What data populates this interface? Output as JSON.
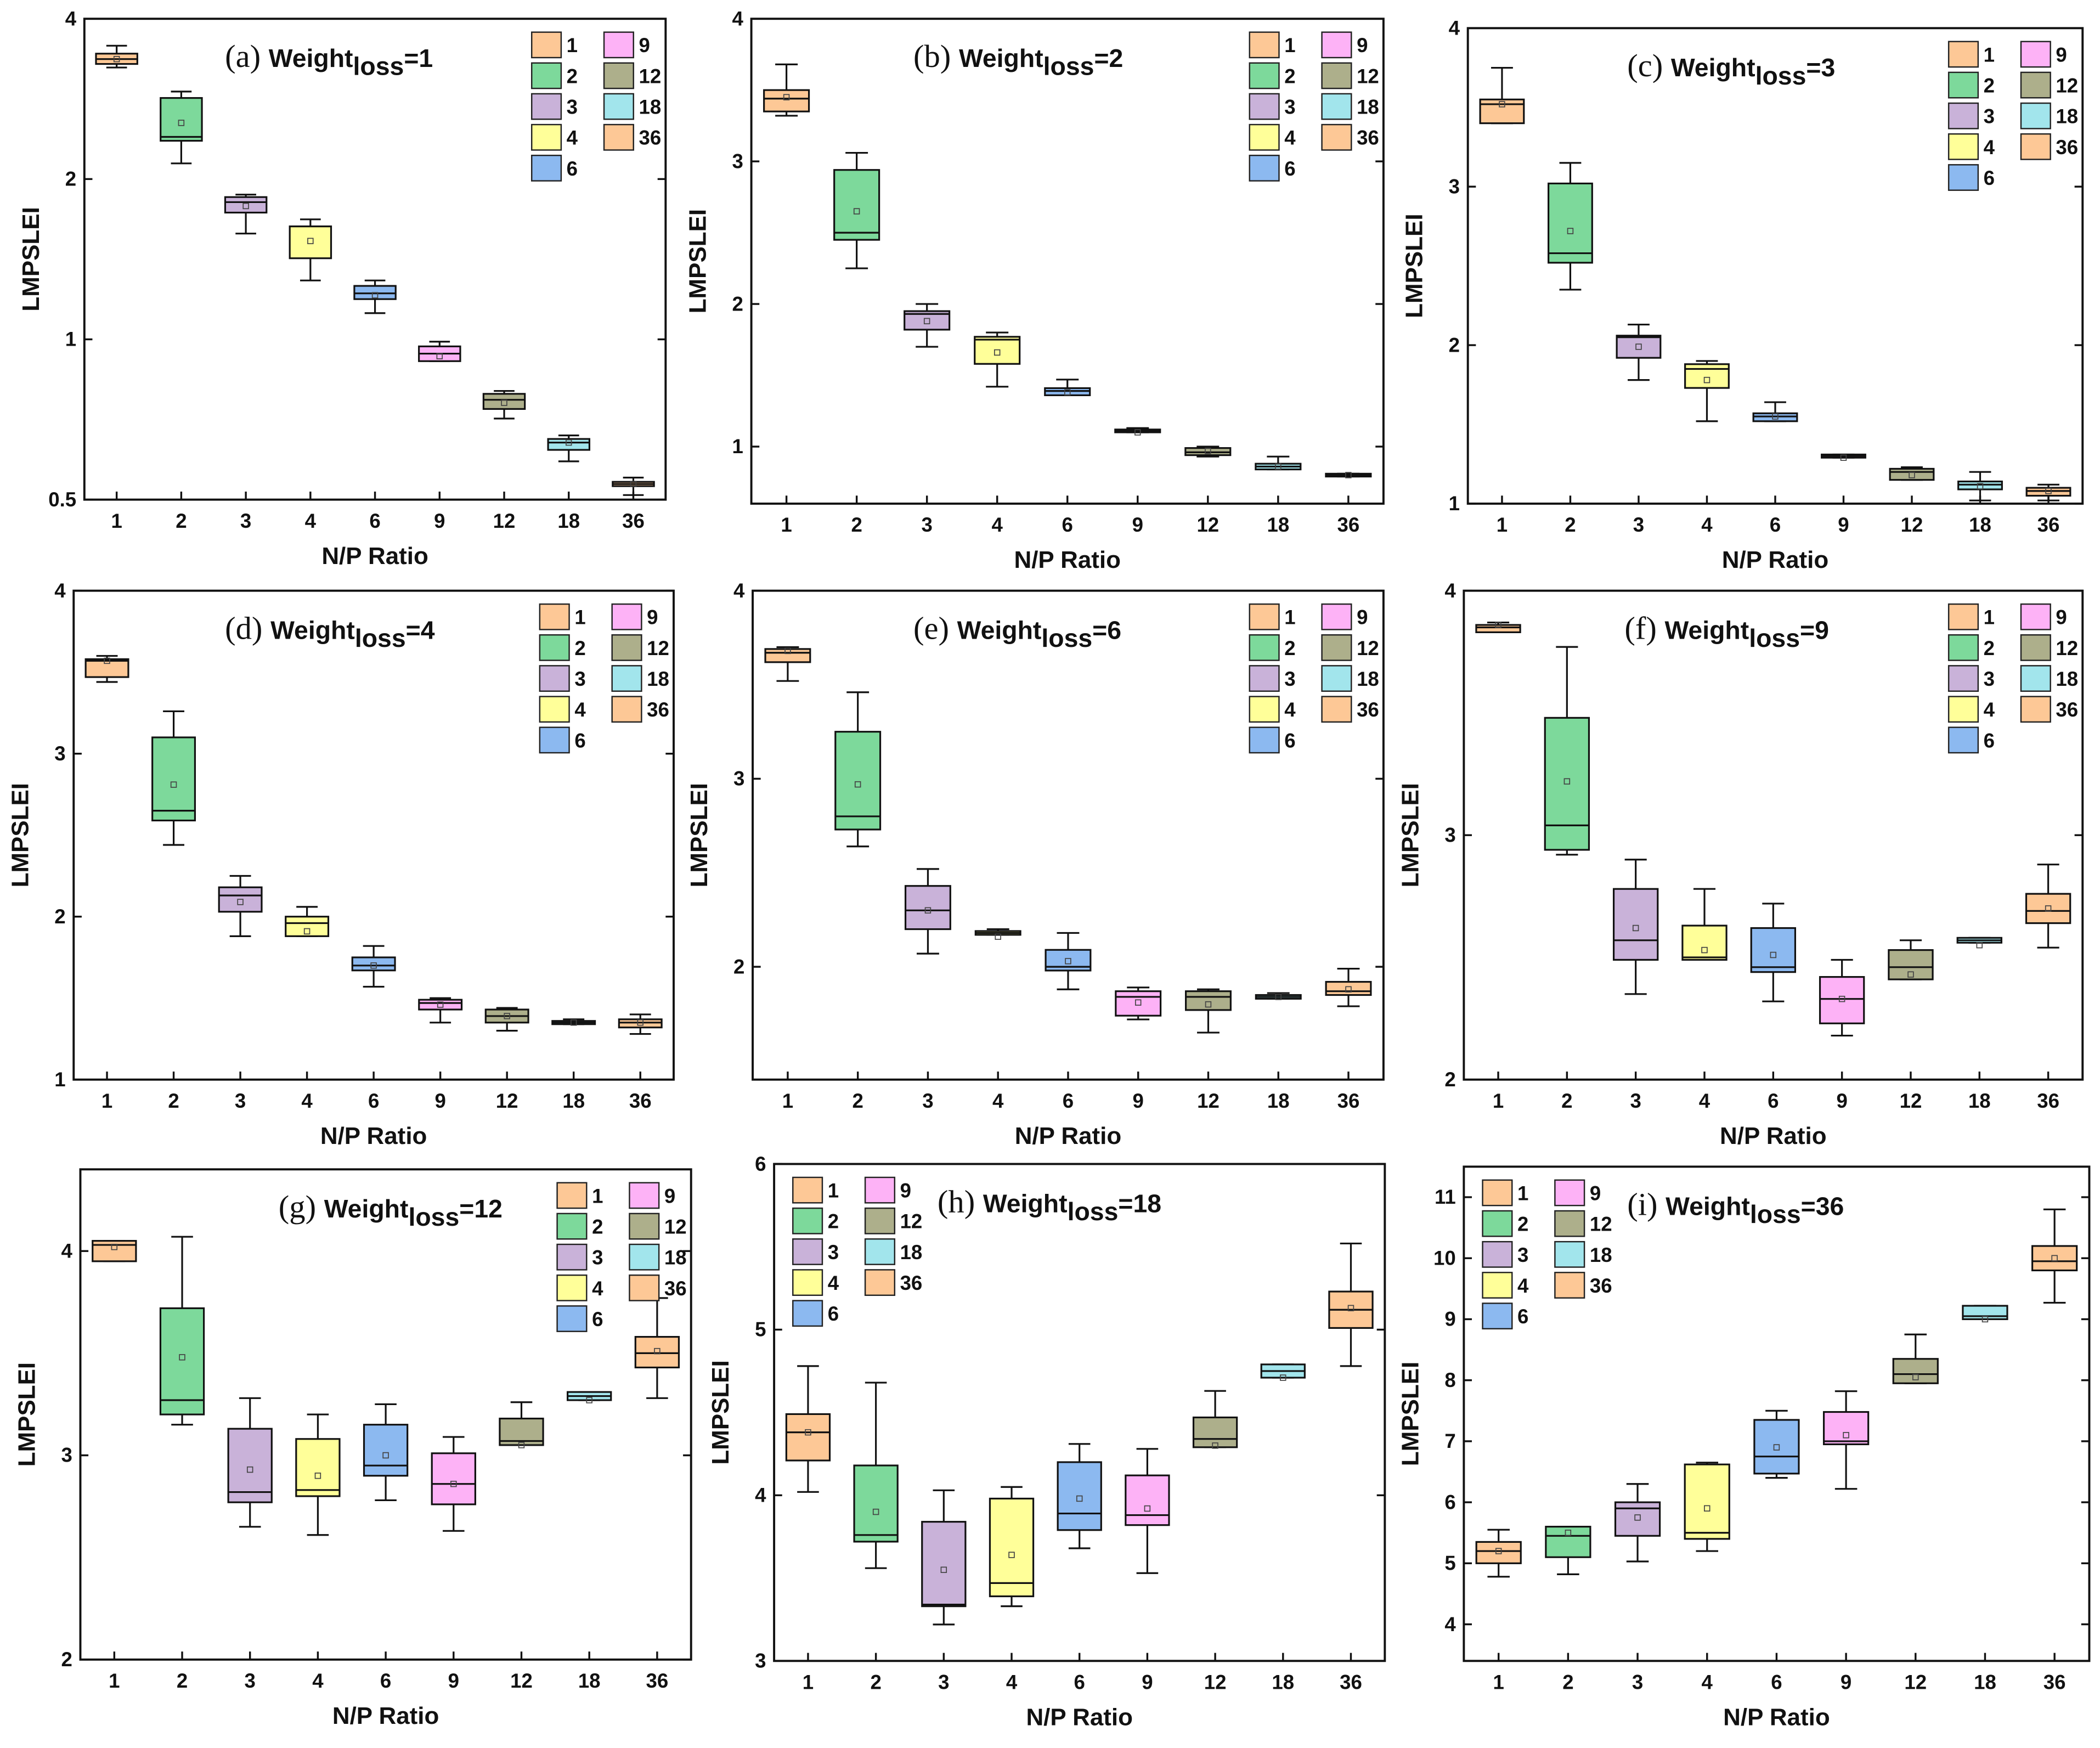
{
  "legend_colors": {
    "1": "#FDC896",
    "2": "#7DD99B",
    "3": "#C9B2D9",
    "4": "#FFFF99",
    "6": "#8CB9F0",
    "9": "#FDB2F6",
    "12": "#ADAF8B",
    "18": "#A2E5EC",
    "36": "#FDC896"
  },
  "chart_data": [
    {
      "type": "box",
      "panel": "(a)",
      "title_main": "Weight",
      "title_sub": "loss",
      "title_eq": "=1",
      "scale": "log2",
      "ylim": [
        0.5,
        4
      ],
      "yticks": [
        0.5,
        1,
        2,
        4
      ],
      "ytick_labels": [
        "0.5",
        "1",
        "2",
        "4"
      ],
      "xlabel": "N/P Ratio",
      "ylabel": "LMPSLEI",
      "legend": "top-right",
      "categories": [
        "1",
        "2",
        "3",
        "4",
        "6",
        "9",
        "12",
        "18",
        "36"
      ],
      "boxes": [
        [
          3.56,
          3.44,
          3.36,
          3.29,
          3.24,
          3.36
        ],
        [
          2.92,
          2.84,
          2.4,
          2.36,
          2.14,
          2.55
        ],
        [
          1.87,
          1.85,
          1.81,
          1.73,
          1.58,
          1.78
        ],
        [
          1.68,
          1.63,
          1.63,
          1.42,
          1.29,
          1.53
        ],
        [
          1.29,
          1.26,
          1.22,
          1.19,
          1.12,
          1.21
        ],
        [
          0.99,
          0.97,
          0.94,
          0.91,
          0.91,
          0.93
        ],
        [
          0.8,
          0.79,
          0.77,
          0.74,
          0.71,
          0.76
        ],
        [
          0.66,
          0.65,
          0.64,
          0.62,
          0.59,
          0.64
        ],
        [
          0.55,
          0.54,
          0.535,
          0.53,
          0.51,
          0.535
        ]
      ]
    },
    {
      "type": "box",
      "panel": "(b)",
      "title_main": "Weight",
      "title_sub": "loss",
      "title_eq": "=2",
      "scale": "linear",
      "ylim": [
        0.6,
        4
      ],
      "yticks": [
        1,
        2,
        3,
        4
      ],
      "ytick_labels": [
        "1",
        "2",
        "3",
        "4"
      ],
      "xlabel": "N/P Ratio",
      "ylabel": "LMPSLEI",
      "legend": "top-right",
      "categories": [
        "1",
        "2",
        "3",
        "4",
        "6",
        "9",
        "12",
        "18",
        "36"
      ],
      "boxes": [
        [
          3.68,
          3.5,
          3.44,
          3.35,
          3.32,
          3.45
        ],
        [
          3.06,
          2.94,
          2.5,
          2.45,
          2.25,
          2.65
        ],
        [
          2.0,
          1.95,
          1.93,
          1.82,
          1.7,
          1.88
        ],
        [
          1.8,
          1.77,
          1.75,
          1.58,
          1.42,
          1.66
        ],
        [
          1.47,
          1.41,
          1.39,
          1.36,
          1.36,
          1.38
        ],
        [
          1.13,
          1.12,
          1.11,
          1.1,
          1.1,
          1.1
        ],
        [
          1.0,
          0.99,
          0.96,
          0.94,
          0.93,
          0.97
        ],
        [
          0.93,
          0.88,
          0.86,
          0.84,
          0.84,
          0.86
        ],
        [
          0.81,
          0.81,
          0.8,
          0.79,
          0.79,
          0.8
        ]
      ]
    },
    {
      "type": "box",
      "panel": "(c)",
      "title_main": "Weight",
      "title_sub": "loss",
      "title_eq": "=3",
      "scale": "linear",
      "ylim": [
        1,
        4
      ],
      "yticks": [
        1,
        2,
        3,
        4
      ],
      "ytick_labels": [
        "1",
        "2",
        "3",
        "4"
      ],
      "xlabel": "N/P Ratio",
      "ylabel": "LMPSLEI",
      "legend": "top-right",
      "categories": [
        "1",
        "2",
        "3",
        "4",
        "6",
        "9",
        "12",
        "18",
        "36"
      ],
      "boxes": [
        [
          3.75,
          3.55,
          3.52,
          3.4,
          3.4,
          3.52
        ],
        [
          3.15,
          3.02,
          2.58,
          2.52,
          2.35,
          2.72
        ],
        [
          2.13,
          2.06,
          2.05,
          1.92,
          1.78,
          1.99
        ],
        [
          1.9,
          1.88,
          1.85,
          1.73,
          1.52,
          1.78
        ],
        [
          1.64,
          1.57,
          1.55,
          1.52,
          1.52,
          1.55
        ],
        [
          1.31,
          1.31,
          1.3,
          1.29,
          1.29,
          1.29
        ],
        [
          1.23,
          1.22,
          1.2,
          1.15,
          1.15,
          1.18
        ],
        [
          1.2,
          1.14,
          1.12,
          1.09,
          1.02,
          1.11
        ],
        [
          1.12,
          1.1,
          1.08,
          1.05,
          1.02,
          1.08
        ]
      ]
    },
    {
      "type": "box",
      "panel": "(d)",
      "title_main": "Weight",
      "title_sub": "loss",
      "title_eq": "=4",
      "scale": "linear",
      "ylim": [
        1,
        4
      ],
      "yticks": [
        1,
        2,
        3,
        4
      ],
      "ytick_labels": [
        "1",
        "2",
        "3",
        "4"
      ],
      "xlabel": "N/P Ratio",
      "ylabel": "LMPSLEI",
      "legend": "top-right",
      "categories": [
        "1",
        "2",
        "3",
        "4",
        "6",
        "9",
        "12",
        "18",
        "36"
      ],
      "boxes": [
        [
          3.6,
          3.58,
          3.57,
          3.47,
          3.44,
          3.57
        ],
        [
          3.26,
          3.1,
          2.65,
          2.59,
          2.44,
          2.81
        ],
        [
          2.25,
          2.18,
          2.13,
          2.03,
          1.88,
          2.09
        ],
        [
          2.06,
          2.0,
          1.96,
          1.88,
          1.88,
          1.91
        ],
        [
          1.82,
          1.75,
          1.7,
          1.67,
          1.57,
          1.7
        ],
        [
          1.5,
          1.49,
          1.47,
          1.43,
          1.35,
          1.46
        ],
        [
          1.44,
          1.43,
          1.39,
          1.35,
          1.3,
          1.39
        ],
        [
          1.37,
          1.36,
          1.35,
          1.34,
          1.34,
          1.35
        ],
        [
          1.4,
          1.37,
          1.35,
          1.32,
          1.28,
          1.35
        ]
      ]
    },
    {
      "type": "box",
      "panel": "(e)",
      "title_main": "Weight",
      "title_sub": "loss",
      "title_eq": "=6",
      "scale": "linear",
      "ylim": [
        1.4,
        4
      ],
      "yticks": [
        2,
        3,
        4
      ],
      "ytick_labels": [
        "2",
        "3",
        "4"
      ],
      "xlabel": "N/P Ratio",
      "ylabel": "LMPSLEI",
      "legend": "top-right",
      "categories": [
        "1",
        "2",
        "3",
        "4",
        "6",
        "9",
        "12",
        "18",
        "36"
      ],
      "boxes": [
        [
          3.7,
          3.69,
          3.67,
          3.62,
          3.52,
          3.68
        ],
        [
          3.46,
          3.25,
          2.8,
          2.73,
          2.64,
          2.97
        ],
        [
          2.52,
          2.43,
          2.3,
          2.2,
          2.07,
          2.3
        ],
        [
          2.2,
          2.19,
          2.18,
          2.17,
          2.17,
          2.16
        ],
        [
          2.18,
          2.09,
          2.0,
          1.98,
          1.88,
          2.03
        ],
        [
          1.89,
          1.87,
          1.84,
          1.74,
          1.72,
          1.81
        ],
        [
          1.88,
          1.87,
          1.84,
          1.77,
          1.65,
          1.8
        ],
        [
          1.86,
          1.85,
          1.84,
          1.83,
          1.83,
          1.84
        ],
        [
          1.99,
          1.92,
          1.87,
          1.85,
          1.79,
          1.88
        ]
      ]
    },
    {
      "type": "box",
      "panel": "(f)",
      "title_main": "Weight",
      "title_sub": "loss",
      "title_eq": "=9",
      "scale": "linear",
      "ylim": [
        2,
        4
      ],
      "yticks": [
        2,
        3,
        4
      ],
      "ytick_labels": [
        "2",
        "3",
        "4"
      ],
      "xlabel": "N/P Ratio",
      "ylabel": "LMPSLEI",
      "legend": "top-right",
      "categories": [
        "1",
        "2",
        "3",
        "4",
        "6",
        "9",
        "12",
        "18",
        "36"
      ],
      "boxes": [
        [
          3.87,
          3.86,
          3.85,
          3.83,
          3.83,
          3.86
        ],
        [
          3.77,
          3.48,
          3.04,
          2.94,
          2.92,
          3.22
        ],
        [
          2.9,
          2.78,
          2.57,
          2.49,
          2.35,
          2.62
        ],
        [
          2.78,
          2.63,
          2.5,
          2.49,
          2.49,
          2.53
        ],
        [
          2.72,
          2.62,
          2.46,
          2.44,
          2.32,
          2.51
        ],
        [
          2.49,
          2.42,
          2.33,
          2.23,
          2.18,
          2.33
        ],
        [
          2.57,
          2.53,
          2.46,
          2.41,
          2.41,
          2.43
        ],
        [
          2.58,
          2.58,
          2.57,
          2.56,
          2.56,
          2.55
        ],
        [
          2.88,
          2.76,
          2.69,
          2.64,
          2.54,
          2.7
        ]
      ]
    },
    {
      "type": "box",
      "panel": "(g)",
      "title_main": "Weight",
      "title_sub": "loss",
      "title_eq": "=12",
      "scale": "linear",
      "ylim": [
        2,
        4.4
      ],
      "yticks": [
        2,
        3,
        4
      ],
      "ytick_labels": [
        "2",
        "3",
        "4"
      ],
      "xlabel": "N/P Ratio",
      "ylabel": "LMPSLEI",
      "legend": "top-right",
      "categories": [
        "1",
        "2",
        "3",
        "4",
        "6",
        "9",
        "12",
        "18",
        "36"
      ],
      "boxes": [
        [
          4.05,
          4.05,
          4.03,
          3.95,
          3.95,
          4.02
        ],
        [
          4.07,
          3.72,
          3.27,
          3.2,
          3.15,
          3.48
        ],
        [
          3.28,
          3.13,
          2.82,
          2.77,
          2.65,
          2.93
        ],
        [
          3.2,
          3.08,
          2.83,
          2.8,
          2.61,
          2.9
        ],
        [
          3.25,
          3.15,
          2.95,
          2.9,
          2.78,
          3.0
        ],
        [
          3.09,
          3.01,
          2.86,
          2.76,
          2.63,
          2.86
        ],
        [
          3.26,
          3.18,
          3.07,
          3.05,
          3.05,
          3.05
        ],
        [
          3.31,
          3.31,
          3.29,
          3.27,
          3.27,
          3.27
        ],
        [
          3.77,
          3.58,
          3.5,
          3.43,
          3.28,
          3.51
        ]
      ]
    },
    {
      "type": "box",
      "panel": "(h)",
      "title_main": "Weight",
      "title_sub": "loss",
      "title_eq": "=18",
      "scale": "linear",
      "ylim": [
        3,
        6
      ],
      "yticks": [
        3,
        4,
        5,
        6
      ],
      "ytick_labels": [
        "3",
        "4",
        "5",
        "6"
      ],
      "xlabel": "N/P Ratio",
      "ylabel": "LMPSLEI",
      "legend": "top-left",
      "categories": [
        "1",
        "2",
        "3",
        "4",
        "6",
        "9",
        "12",
        "18",
        "36"
      ],
      "boxes": [
        [
          4.78,
          4.49,
          4.38,
          4.21,
          4.02,
          4.38
        ],
        [
          4.68,
          4.18,
          3.76,
          3.72,
          3.56,
          3.9
        ],
        [
          4.03,
          3.84,
          3.34,
          3.33,
          3.22,
          3.55
        ],
        [
          4.05,
          3.98,
          3.47,
          3.39,
          3.33,
          3.64
        ],
        [
          4.31,
          4.2,
          3.89,
          3.79,
          3.68,
          3.98
        ],
        [
          4.28,
          4.12,
          3.88,
          3.82,
          3.53,
          3.92
        ],
        [
          4.63,
          4.47,
          4.34,
          4.29,
          4.29,
          4.3
        ],
        [
          4.79,
          4.79,
          4.75,
          4.71,
          4.71,
          4.71
        ],
        [
          5.52,
          5.23,
          5.12,
          5.01,
          4.78,
          5.13
        ]
      ]
    },
    {
      "type": "box",
      "panel": "(i)",
      "title_main": "Weight",
      "title_sub": "loss",
      "title_eq": "=36",
      "scale": "linear",
      "ylim": [
        3.4,
        11.5
      ],
      "yticks": [
        4,
        5,
        6,
        7,
        8,
        9,
        10,
        11
      ],
      "ytick_labels": [
        "4",
        "5",
        "6",
        "7",
        "8",
        "9",
        "10",
        "11"
      ],
      "xlabel": "N/P Ratio",
      "ylabel": "LMPSLEI",
      "legend": "top-left",
      "categories": [
        "1",
        "2",
        "3",
        "4",
        "6",
        "9",
        "12",
        "18",
        "36"
      ],
      "boxes": [
        [
          5.55,
          5.35,
          5.2,
          5.0,
          4.78,
          5.2
        ],
        [
          5.6,
          5.6,
          5.45,
          5.1,
          4.82,
          5.5
        ],
        [
          6.3,
          6.0,
          5.9,
          5.45,
          5.03,
          5.75
        ],
        [
          6.65,
          6.62,
          5.5,
          5.4,
          5.2,
          5.9
        ],
        [
          7.5,
          7.35,
          6.75,
          6.47,
          6.4,
          6.9
        ],
        [
          7.82,
          7.48,
          7.0,
          6.95,
          6.22,
          7.1
        ],
        [
          8.75,
          8.35,
          8.1,
          7.95,
          7.95,
          8.05
        ],
        [
          9.22,
          9.22,
          9.05,
          9.0,
          9.0,
          9.0
        ],
        [
          10.8,
          10.2,
          9.95,
          9.8,
          9.27,
          10.0
        ]
      ]
    }
  ]
}
